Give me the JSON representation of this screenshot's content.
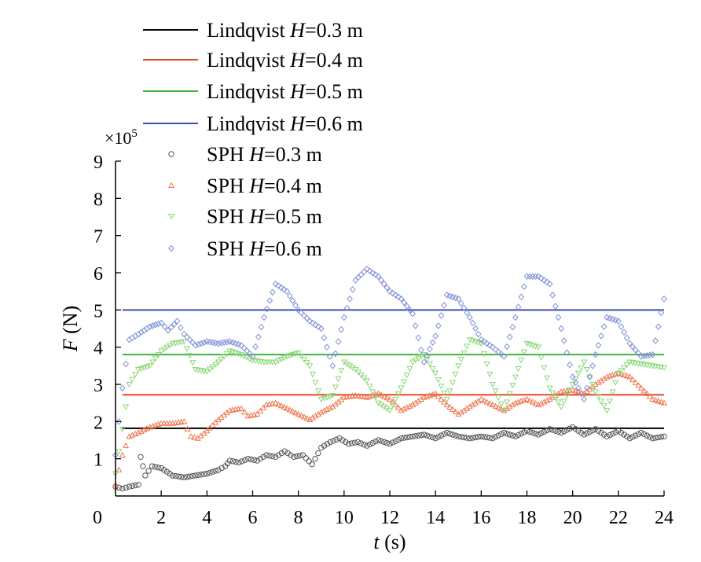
{
  "chart_data": {
    "type": "line",
    "title": "",
    "xlabel_var": "t",
    "xlabel_unit": " (s)",
    "ylabel_var": "F",
    "ylabel_unit": " (N)",
    "y_multiplier_base": "×10",
    "y_multiplier_exp": "5",
    "xlim": [
      0,
      24
    ],
    "ylim": [
      0,
      9
    ],
    "x_ticks": [
      0,
      2,
      4,
      6,
      8,
      10,
      12,
      14,
      16,
      18,
      20,
      22,
      24
    ],
    "y_ticks": [
      1,
      2,
      3,
      4,
      5,
      6,
      7,
      8,
      9
    ],
    "grid": false,
    "legend_position": "top-left",
    "series": [
      {
        "name": "Lindqvist H=0.3 m",
        "label_prefix": "Lindqvist ",
        "label_var": "H",
        "label_suffix": "=0.3 m",
        "kind": "line",
        "color": "#000000",
        "x": [
          0.3,
          24
        ],
        "y": [
          1.82,
          1.82
        ]
      },
      {
        "name": "Lindqvist H=0.4 m",
        "label_prefix": "Lindqvist ",
        "label_var": "H",
        "label_suffix": "=0.4 m",
        "kind": "line",
        "color": "#e8462a",
        "x": [
          0.3,
          24
        ],
        "y": [
          2.72,
          2.72
        ]
      },
      {
        "name": "Lindqvist H=0.5 m",
        "label_prefix": "Lindqvist ",
        "label_var": "H",
        "label_suffix": "=0.5 m",
        "kind": "line",
        "color": "#3cb43c",
        "x": [
          0.3,
          24
        ],
        "y": [
          3.8,
          3.8
        ]
      },
      {
        "name": "Lindqvist H=0.6 m",
        "label_prefix": "Lindqvist ",
        "label_var": "H",
        "label_suffix": "=0.6 m",
        "kind": "line",
        "color": "#3a4fb5",
        "x": [
          0.3,
          24
        ],
        "y": [
          5.0,
          5.0
        ]
      },
      {
        "name": "SPH H=0.3 m",
        "label_prefix": "SPH ",
        "label_var": "H",
        "label_suffix": "=0.3 m",
        "kind": "scatter",
        "marker": "circle",
        "color": "#555555",
        "x": [
          0.0,
          0.3,
          0.6,
          1.0,
          1.1,
          1.3,
          1.6,
          2.0,
          2.5,
          3.0,
          3.5,
          4.0,
          4.5,
          4.8,
          5.0,
          5.4,
          5.8,
          6.2,
          6.6,
          7.0,
          7.4,
          7.8,
          8.2,
          8.6,
          9.0,
          9.4,
          9.8,
          10.2,
          10.6,
          11.0,
          11.5,
          12.0,
          12.5,
          13.0,
          13.5,
          14.0,
          14.5,
          15.0,
          15.5,
          16.0,
          16.5,
          17.0,
          17.5,
          18.0,
          18.5,
          19.0,
          19.5,
          20.0,
          20.5,
          21.0,
          21.5,
          22.0,
          22.5,
          23.0,
          23.5,
          24.0
        ],
        "y": [
          0.25,
          0.2,
          0.25,
          0.3,
          1.05,
          0.55,
          0.8,
          0.75,
          0.55,
          0.5,
          0.55,
          0.6,
          0.7,
          0.8,
          0.95,
          0.9,
          1.0,
          0.95,
          1.1,
          1.05,
          1.2,
          1.05,
          1.1,
          0.85,
          1.3,
          1.45,
          1.55,
          1.4,
          1.45,
          1.35,
          1.5,
          1.4,
          1.55,
          1.6,
          1.65,
          1.55,
          1.7,
          1.6,
          1.55,
          1.6,
          1.55,
          1.7,
          1.6,
          1.75,
          1.65,
          1.8,
          1.7,
          1.85,
          1.65,
          1.8,
          1.6,
          1.75,
          1.55,
          1.7,
          1.55,
          1.6
        ]
      },
      {
        "name": "SPH H=0.4 m",
        "label_prefix": "SPH ",
        "label_var": "H",
        "label_suffix": "=0.4 m",
        "kind": "scatter",
        "marker": "triangle-up",
        "color": "#f07850",
        "x": [
          0.0,
          0.3,
          0.6,
          1.0,
          1.5,
          2.0,
          2.5,
          3.0,
          3.3,
          3.6,
          4.0,
          4.5,
          5.0,
          5.5,
          5.8,
          6.2,
          6.6,
          7.0,
          7.5,
          8.0,
          8.5,
          9.0,
          9.5,
          10.0,
          10.5,
          11.0,
          11.5,
          12.0,
          12.5,
          13.0,
          13.5,
          14.0,
          14.5,
          15.0,
          15.5,
          16.0,
          16.5,
          17.0,
          17.5,
          18.0,
          18.5,
          19.0,
          19.5,
          20.0,
          20.5,
          21.0,
          21.5,
          22.0,
          22.5,
          23.0,
          23.5,
          24.0
        ],
        "y": [
          0.3,
          1.1,
          1.6,
          1.7,
          1.85,
          1.95,
          1.95,
          2.0,
          1.6,
          1.55,
          1.75,
          2.05,
          2.3,
          2.35,
          2.15,
          2.2,
          2.45,
          2.5,
          2.35,
          2.2,
          2.05,
          2.25,
          2.4,
          2.65,
          2.7,
          2.65,
          2.75,
          2.6,
          2.3,
          2.45,
          2.65,
          2.75,
          2.45,
          2.2,
          2.4,
          2.6,
          2.45,
          2.3,
          2.5,
          2.6,
          2.45,
          2.6,
          2.8,
          2.85,
          2.75,
          3.0,
          3.2,
          3.3,
          3.2,
          2.9,
          2.6,
          2.5
        ]
      },
      {
        "name": "SPH H=0.5 m",
        "label_prefix": "SPH ",
        "label_var": "H",
        "label_suffix": "=0.5 m",
        "kind": "scatter",
        "marker": "triangle-down",
        "color": "#8cd878",
        "x": [
          0.0,
          0.3,
          0.6,
          1.0,
          1.5,
          2.0,
          2.5,
          3.0,
          3.5,
          4.0,
          4.5,
          5.0,
          5.5,
          6.0,
          6.5,
          7.0,
          7.5,
          8.0,
          8.5,
          9.0,
          9.5,
          10.0,
          10.5,
          11.0,
          11.5,
          12.0,
          12.5,
          13.0,
          13.5,
          14.0,
          14.5,
          15.0,
          15.5,
          16.0,
          16.5,
          17.0,
          17.5,
          18.0,
          18.5,
          19.0,
          19.5,
          20.0,
          20.5,
          21.0,
          21.5,
          22.0,
          22.5,
          23.0,
          23.5,
          24.0
        ],
        "y": [
          0.6,
          1.8,
          3.0,
          3.4,
          3.5,
          3.9,
          4.1,
          4.15,
          3.4,
          3.35,
          3.6,
          3.9,
          3.8,
          3.65,
          3.6,
          3.6,
          3.75,
          3.85,
          3.5,
          2.6,
          2.7,
          3.6,
          3.4,
          3.1,
          2.5,
          2.3,
          2.9,
          3.6,
          3.8,
          3.3,
          2.6,
          3.5,
          4.2,
          4.1,
          3.0,
          2.3,
          3.2,
          4.1,
          4.0,
          2.9,
          2.4,
          3.0,
          3.6,
          2.8,
          2.3,
          3.3,
          3.6,
          3.55,
          3.5,
          3.45
        ]
      },
      {
        "name": "SPH H=0.6 m",
        "label_prefix": "SPH ",
        "label_var": "H",
        "label_suffix": "=0.6 m",
        "kind": "scatter",
        "marker": "diamond",
        "color": "#7f8fd8",
        "x": [
          0.0,
          0.3,
          0.6,
          1.0,
          1.5,
          2.0,
          2.3,
          2.7,
          3.0,
          3.5,
          4.0,
          4.5,
          5.0,
          5.5,
          6.0,
          6.5,
          7.0,
          7.5,
          8.0,
          8.5,
          9.0,
          9.5,
          10.0,
          10.5,
          11.0,
          11.5,
          12.0,
          12.5,
          13.0,
          13.5,
          14.0,
          14.5,
          15.0,
          15.5,
          16.0,
          16.5,
          17.0,
          17.5,
          18.0,
          18.5,
          19.0,
          19.5,
          20.0,
          20.5,
          21.0,
          21.5,
          22.0,
          22.5,
          23.0,
          23.5,
          24.0
        ],
        "y": [
          1.1,
          2.9,
          4.2,
          4.35,
          4.55,
          4.65,
          4.45,
          4.7,
          4.35,
          4.05,
          4.15,
          4.1,
          4.15,
          4.05,
          3.75,
          4.8,
          5.7,
          5.5,
          5.0,
          4.7,
          4.5,
          3.5,
          4.8,
          5.8,
          6.1,
          5.9,
          5.5,
          5.3,
          4.9,
          3.6,
          4.3,
          5.4,
          5.3,
          4.8,
          4.2,
          4.0,
          3.75,
          4.8,
          5.9,
          5.9,
          5.7,
          4.5,
          3.2,
          2.6,
          3.8,
          4.8,
          4.7,
          4.1,
          3.75,
          3.8,
          5.3
        ]
      }
    ]
  }
}
